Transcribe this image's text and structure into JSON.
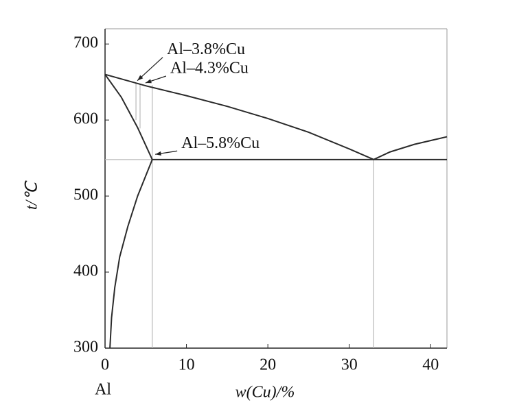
{
  "chart_data": {
    "type": "line",
    "x_label": "w(Cu)/%",
    "y_label": "t/℃",
    "origin_label": "Al",
    "xlim": [
      0,
      42
    ],
    "ylim": [
      300,
      720
    ],
    "xticks": [
      0,
      10,
      20,
      30,
      40
    ],
    "yticks": [
      300,
      400,
      500,
      600,
      700
    ],
    "color": "#2a2a2a",
    "guide_color": "#b8b8b8",
    "curves": [
      {
        "x": [
          0,
          5,
          10,
          15,
          20,
          25,
          30,
          33
        ],
        "y": [
          660,
          645,
          632,
          618,
          602,
          584,
          562,
          548
        ]
      },
      {
        "x": [
          33,
          35,
          38,
          42
        ],
        "y": [
          548,
          558,
          568,
          578
        ]
      },
      {
        "x": [
          0,
          2,
          4,
          5.8
        ],
        "y": [
          660,
          630,
          590,
          548
        ]
      },
      {
        "x": [
          0.6,
          0.8,
          1.2,
          1.8,
          2.8,
          4,
          5.8
        ],
        "y": [
          300,
          340,
          380,
          420,
          460,
          500,
          548
        ]
      },
      {
        "x": [
          5.8,
          42
        ],
        "y": [
          548,
          548
        ]
      }
    ],
    "guides": [
      {
        "x": [
          0,
          5.8
        ],
        "y": [
          548,
          548
        ]
      },
      {
        "x": [
          5.8,
          5.8
        ],
        "y": [
          300,
          646
        ]
      },
      {
        "x": [
          33,
          33
        ],
        "y": [
          300,
          548
        ]
      },
      {
        "x": [
          3.8,
          3.8
        ],
        "y": [
          600,
          649
        ]
      },
      {
        "x": [
          4.3,
          4.3
        ],
        "y": [
          589,
          648
        ]
      }
    ],
    "annotations": [
      {
        "text": "Al–3.8%Cu",
        "x": 3.8,
        "y": 650
      },
      {
        "text": "Al–4.3%Cu",
        "x": 4.8,
        "y": 647
      },
      {
        "text": "Al–5.8%Cu",
        "x": 6.0,
        "y": 553
      }
    ]
  }
}
